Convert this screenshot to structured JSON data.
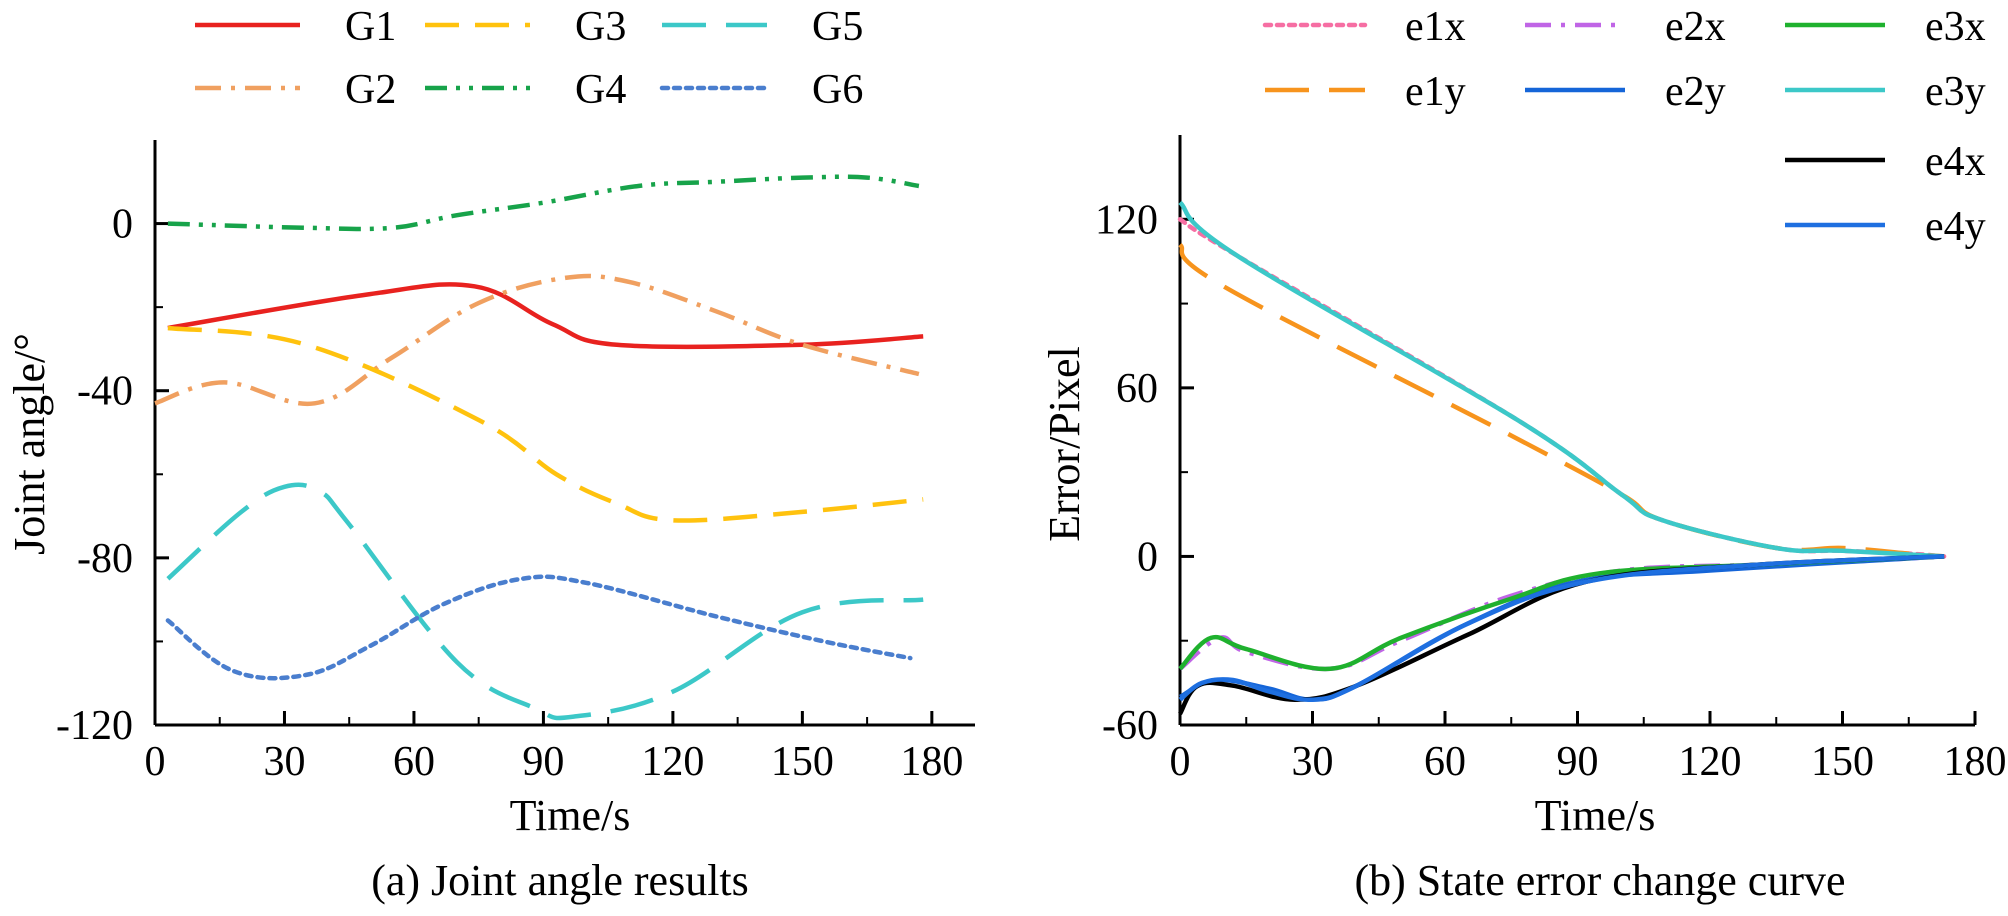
{
  "chart_data": [
    {
      "type": "line",
      "title": "(a) Joint angle results",
      "xlabel": "Time/s",
      "ylabel": "Joint angle/°",
      "xlim": [
        0,
        190
      ],
      "ylim": [
        -120,
        20
      ],
      "xticks": [
        "0",
        "30",
        "60",
        "90",
        "120",
        "150",
        "180"
      ],
      "yticks": [
        "-120",
        "-80",
        "-40",
        "0"
      ],
      "legend_position": "top",
      "grid": false,
      "series": [
        {
          "name": "G1",
          "color": "#e8221f",
          "dash": "solid",
          "x": [
            3,
            49,
            74,
            92,
            107,
            150,
            178
          ],
          "y": [
            -25,
            -17,
            -15,
            -24,
            -29,
            -29,
            -27
          ]
        },
        {
          "name": "G2",
          "color": "#f0a060",
          "dash": "dashdot",
          "x": [
            0,
            16,
            37,
            55,
            75,
            95,
            110,
            130,
            150,
            177
          ],
          "y": [
            -43,
            -38,
            -43,
            -32,
            -19,
            -13,
            -14,
            -21,
            -29,
            -36
          ]
        },
        {
          "name": "G3",
          "color": "#ffc20e",
          "dash": "dash",
          "x": [
            3,
            35,
            75,
            93,
            107,
            120,
            150,
            178
          ],
          "y": [
            -25,
            -29,
            -47,
            -60,
            -67,
            -71,
            -69,
            -66
          ]
        },
        {
          "name": "G4",
          "color": "#17a34a",
          "dash": "dashdotdot",
          "x": [
            3,
            35,
            55,
            70,
            90,
            112,
            130,
            150,
            165,
            177
          ],
          "y": [
            0,
            -1,
            -1,
            2,
            5,
            9,
            10,
            11,
            11,
            9
          ]
        },
        {
          "name": "G5",
          "color": "#3cc8c8",
          "dash": "longdash",
          "x": [
            3,
            20,
            30,
            38,
            45,
            70,
            88,
            97,
            120,
            150,
            178
          ],
          "y": [
            -85,
            -69,
            -63,
            -64,
            -72,
            -105,
            -116,
            -118,
            -112,
            -93,
            -90
          ]
        },
        {
          "name": "G6",
          "color": "#4a7ece",
          "dash": "dot",
          "x": [
            3,
            18,
            35,
            50,
            67,
            85,
            100,
            130,
            155,
            175
          ],
          "y": [
            -95,
            -107,
            -108,
            -101,
            -91,
            -85,
            -86,
            -94,
            -100,
            -104
          ]
        }
      ]
    },
    {
      "type": "line",
      "title": "(b) State error change curve",
      "xlabel": "Time/s",
      "ylabel": "Error/Pixel",
      "xlim": [
        0,
        180
      ],
      "ylim": [
        -60,
        150
      ],
      "xticks": [
        "0",
        "30",
        "60",
        "90",
        "120",
        "150",
        "180"
      ],
      "yticks": [
        "-60",
        "0",
        "60",
        "120"
      ],
      "legend_position": "top-right",
      "grid": false,
      "series": [
        {
          "name": "e1x",
          "color": "#f66ea3",
          "dash": "dot",
          "x": [
            0,
            13,
            77,
            100,
            109,
            135,
            150,
            165,
            173
          ],
          "y": [
            120,
            107,
            48,
            22,
            13,
            3,
            2,
            1,
            0
          ]
        },
        {
          "name": "e1y",
          "color": "#f7941d",
          "dash": "longdash",
          "x": [
            0,
            10,
            75,
            100,
            109,
            135,
            150,
            165,
            173
          ],
          "y": [
            111,
            96,
            43,
            22,
            13,
            3,
            3,
            1,
            0
          ]
        },
        {
          "name": "e2x",
          "color": "#c065e6",
          "dash": "dashdot",
          "x": [
            0,
            9,
            15,
            34,
            50,
            75,
            100,
            130,
            150,
            173
          ],
          "y": [
            -40,
            -29,
            -34,
            -40,
            -30,
            -14,
            -5,
            -3,
            -2,
            0
          ]
        },
        {
          "name": "e2y",
          "color": "#1565d8",
          "dash": "solid",
          "x": [
            0,
            8,
            20,
            30,
            40,
            65,
            90,
            120,
            173
          ],
          "y": [
            -50,
            -44,
            -47,
            -51,
            -46,
            -24,
            -9,
            -5,
            0
          ]
        },
        {
          "name": "e3x",
          "color": "#1fb12e",
          "dash": "solid",
          "x": [
            0,
            7,
            15,
            34,
            50,
            75,
            95,
            130,
            173
          ],
          "y": [
            -40,
            -29,
            -33,
            -40,
            -29,
            -15,
            -6,
            -3,
            0
          ]
        },
        {
          "name": "e3y",
          "color": "#3cc8c8",
          "dash": "solid",
          "x": [
            0,
            13,
            77,
            100,
            109,
            135,
            150,
            173
          ],
          "y": [
            126,
            107,
            48,
            22,
            13,
            3,
            2,
            0
          ]
        },
        {
          "name": "e4x",
          "color": "#000000",
          "dash": "solid",
          "x": [
            0,
            4,
            12,
            26,
            40,
            65,
            92,
            130,
            173
          ],
          "y": [
            -56,
            -46,
            -46,
            -51,
            -46,
            -28,
            -9,
            -3,
            0
          ]
        },
        {
          "name": "e4y",
          "color": "#1e6fe0",
          "dash": "solid",
          "x": [
            0,
            5,
            12,
            20,
            30,
            40,
            65,
            92,
            130,
            173
          ],
          "y": [
            -51,
            -45,
            -44,
            -48,
            -51,
            -46,
            -24,
            -9,
            -3,
            0
          ]
        }
      ]
    }
  ]
}
